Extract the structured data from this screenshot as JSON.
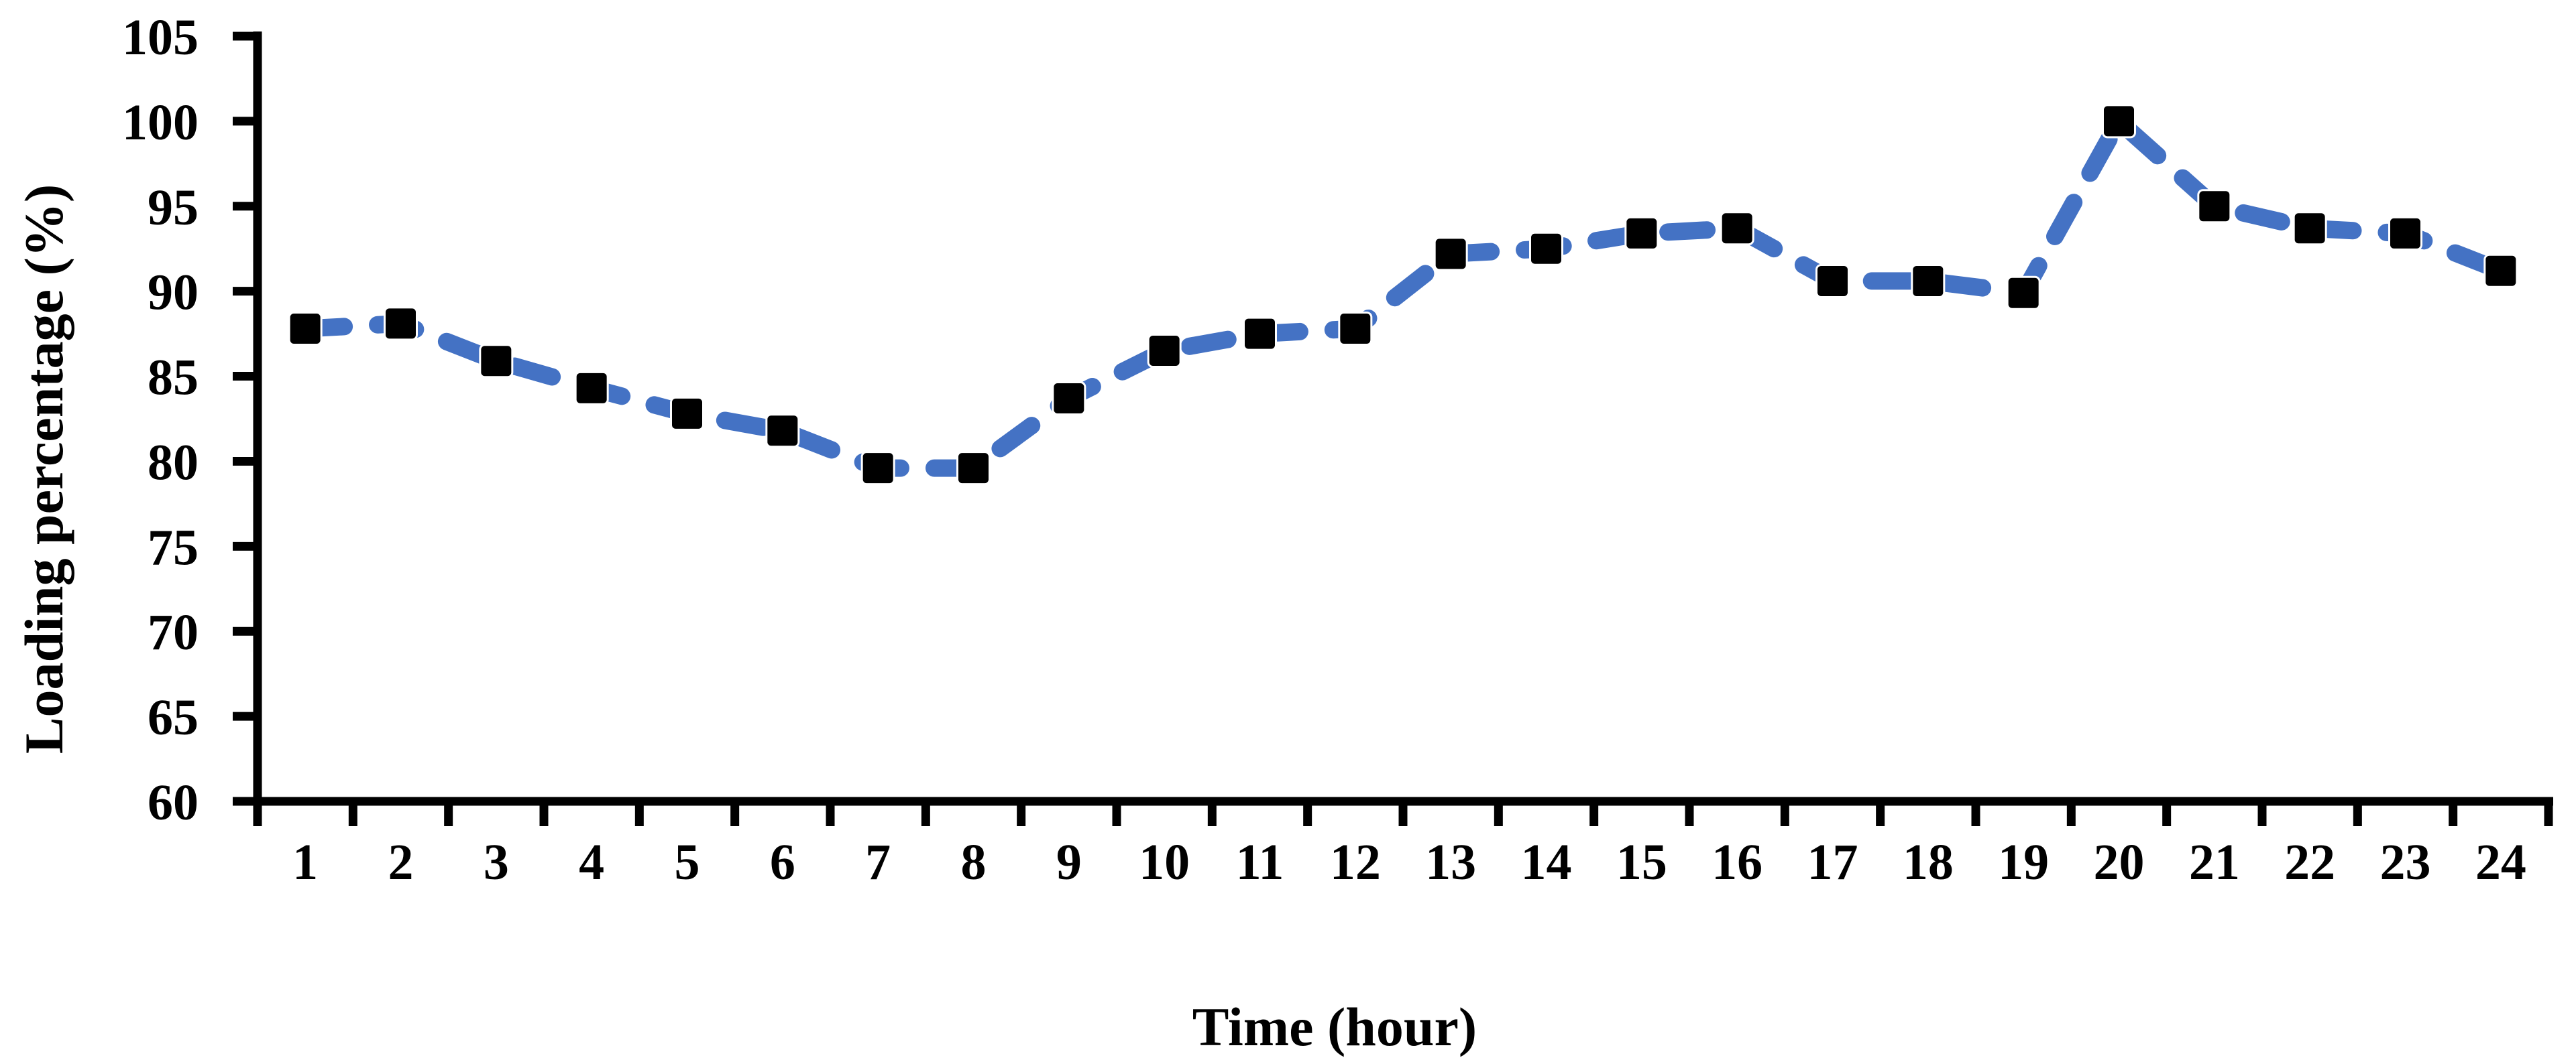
{
  "figure": {
    "background": "#ffffff",
    "axis_color": "#000000",
    "line_color": "#4472C4",
    "marker_color": "#000000",
    "marker_outline": "#ffffff"
  },
  "chart_data": {
    "type": "line",
    "title": "",
    "xlabel": "Time (hour)",
    "ylabel": "Loading percentage (%)",
    "x": [
      1,
      2,
      3,
      4,
      5,
      6,
      7,
      8,
      9,
      10,
      11,
      12,
      13,
      14,
      15,
      16,
      17,
      18,
      19,
      20,
      21,
      22,
      23,
      24
    ],
    "x_tick_labels": [
      "1",
      "2",
      "3",
      "4",
      "5",
      "6",
      "7",
      "8",
      "9",
      "10",
      "11",
      "12",
      "13",
      "14",
      "15",
      "16",
      "17",
      "18",
      "19",
      "20",
      "21",
      "22",
      "23",
      "24"
    ],
    "y_ticks": [
      105,
      100,
      95,
      90,
      85,
      80,
      75,
      70,
      65,
      60
    ],
    "y_tick_labels": [
      "105",
      "100",
      "95",
      "90",
      "85",
      "80",
      "75",
      "70",
      "65",
      "60"
    ],
    "ylim": [
      60,
      105
    ],
    "grid": false,
    "legend_position": "none",
    "series": [
      {
        "name": "Loading percentage",
        "line_style": "dashed",
        "line_color": "#4472C4",
        "marker": "square",
        "marker_color": "#000000",
        "values": [
          87.8,
          88.1,
          85.9,
          84.3,
          82.8,
          81.8,
          79.6,
          79.6,
          83.7,
          86.5,
          87.5,
          87.8,
          92.2,
          92.5,
          93.4,
          93.7,
          90.6,
          90.6,
          89.9,
          100,
          95,
          93.7,
          93.4,
          91.2
        ]
      }
    ]
  }
}
